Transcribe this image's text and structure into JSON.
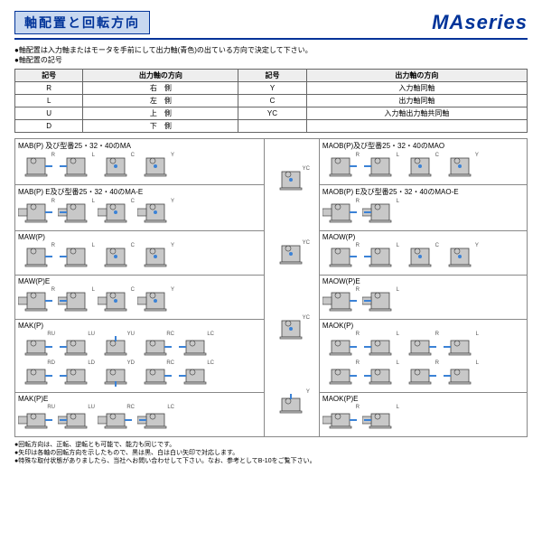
{
  "header": {
    "title": "軸配置と回転方向",
    "series": "MAseries"
  },
  "intro": {
    "line1": "●軸配置は入力軸またはモータを手前にして出力軸(青色)の出ている方向で決定して下さい。",
    "line2": "●軸配置の記号"
  },
  "code_table": {
    "h1": "記号",
    "h2": "出力軸の方向",
    "h3": "記号",
    "h4": "出力軸の方向",
    "r1c1": "R",
    "r1c2": "右　側",
    "r1c3": "Y",
    "r1c4": "入力軸同軸",
    "r2c1": "L",
    "r2c2": "左　側",
    "r2c3": "C",
    "r2c4": "出力軸同軸",
    "r3c1": "U",
    "r3c2": "上　側",
    "r3c3": "YC",
    "r3c4": "入力軸出力軸共同軸",
    "r4c1": "D",
    "r4c2": "下　側"
  },
  "groups": {
    "mab": "MAB(P) 及び型番25・32・40のMA",
    "mabe": "MAB(P) E及び型番25・32・40のMA-E",
    "maob": "MAOB(P)及び型番25・32・40のMAO",
    "maobe": "MAOB(P) E及び型番25・32・40のMAO-E",
    "maw": "MAW(P)",
    "mawe": "MAW(P)E",
    "maow": "MAOW(P)",
    "maowe": "MAOW(P)E",
    "mak": "MAK(P)",
    "make": "MAK(P)E",
    "maok": "MAOK(P)",
    "maoke": "MAOK(P)E"
  },
  "labels": {
    "R": "R",
    "L": "L",
    "C": "C",
    "Y": "Y",
    "YC": "YC",
    "RU": "RU",
    "LU": "LU",
    "RC": "RC",
    "LC": "LC",
    "RD": "RD",
    "LD": "LD",
    "YU": "YU",
    "YD": "YD"
  },
  "notes": {
    "n1": "●回転方向は、正転、逆転とも可能で、能力も同じです。",
    "n2": "●矢印は各軸の回転方向を示したもので、黒は黒、白は白い矢印で対応します。",
    "n3": "●特殊な取付状態がありましたら、当社へお問い合わせして下さい。なお、参考としてB-10をご覧下さい。"
  },
  "colors": {
    "body": "#c8c8c8",
    "shaft": "#3b82d6",
    "outline": "#444"
  }
}
